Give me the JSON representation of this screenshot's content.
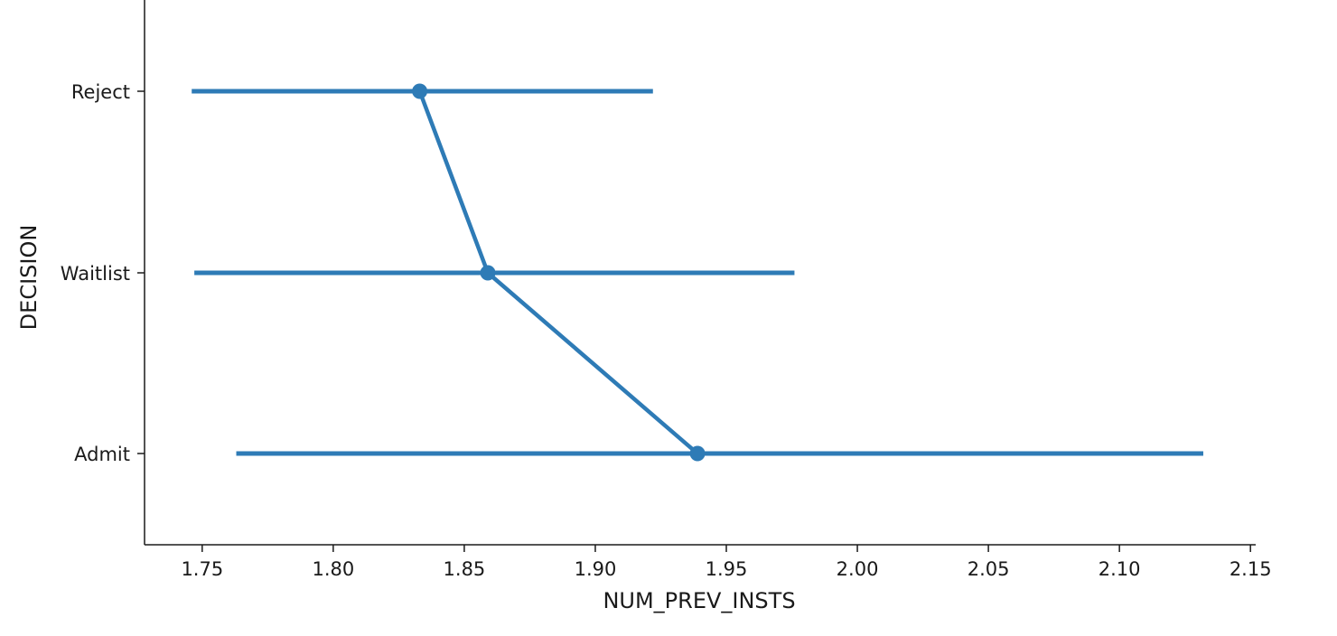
{
  "chart_data": {
    "type": "point",
    "title": "",
    "xlabel": "NUM_PREV_INSTS",
    "ylabel": "DECISION",
    "xlim": [
      1.728,
      2.152
    ],
    "xticks": [
      "1.75",
      "1.80",
      "1.85",
      "1.90",
      "1.95",
      "2.00",
      "2.05",
      "2.10",
      "2.15"
    ],
    "categories": [
      "Reject",
      "Waitlist",
      "Admit"
    ],
    "series": [
      {
        "values": [
          1.833,
          1.859,
          1.939
        ],
        "ci_low": [
          1.746,
          1.747,
          1.763
        ],
        "ci_high": [
          1.922,
          1.976,
          2.132
        ],
        "color": "#2e7bb6"
      }
    ],
    "grid": false,
    "spines": [
      "left",
      "bottom"
    ]
  }
}
